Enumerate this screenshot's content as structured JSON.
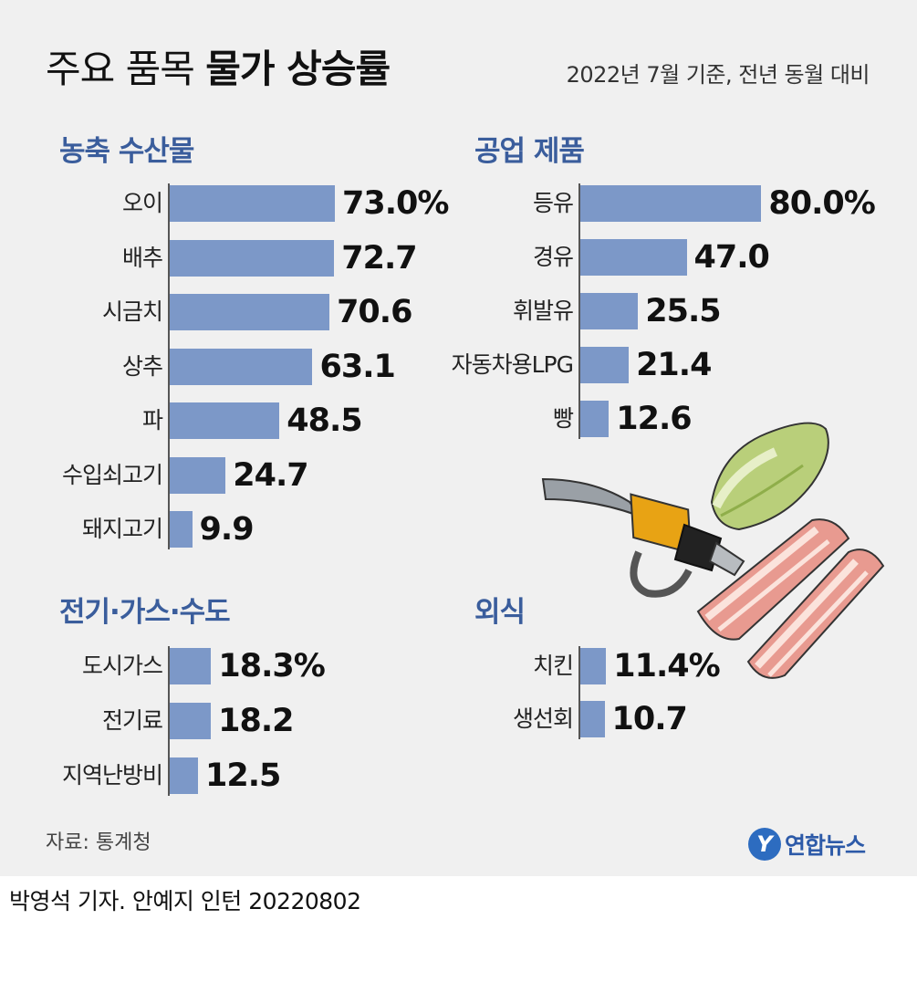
{
  "header": {
    "title_light": "주요 품목",
    "title_bold": "물가 상승률",
    "subtitle": "2022년 7월 기준, 전년 동월 대비"
  },
  "chart_data": [
    {
      "type": "bar",
      "orientation": "horizontal",
      "title": "농축 수산물",
      "categories": [
        "오이",
        "배추",
        "시금치",
        "상추",
        "파",
        "수입쇠고기",
        "돼지고기"
      ],
      "values": [
        73.0,
        72.7,
        70.6,
        63.1,
        48.5,
        24.7,
        9.9
      ],
      "value_labels": [
        "73.0%",
        "72.7",
        "70.6",
        "63.1",
        "48.5",
        "24.7",
        "9.9"
      ],
      "unit": "%",
      "color": "#7c98c8"
    },
    {
      "type": "bar",
      "orientation": "horizontal",
      "title": "공업 제품",
      "categories": [
        "등유",
        "경유",
        "휘발유",
        "자동차용LPG",
        "빵"
      ],
      "values": [
        80.0,
        47.0,
        25.5,
        21.4,
        12.6
      ],
      "value_labels": [
        "80.0%",
        "47.0",
        "25.5",
        "21.4",
        "12.6"
      ],
      "unit": "%",
      "color": "#7c98c8"
    },
    {
      "type": "bar",
      "orientation": "horizontal",
      "title": "전기·가스·수도",
      "categories": [
        "도시가스",
        "전기료",
        "지역난방비"
      ],
      "values": [
        18.3,
        18.2,
        12.5
      ],
      "value_labels": [
        "18.3%",
        "18.2",
        "12.5"
      ],
      "unit": "%",
      "color": "#7c98c8"
    },
    {
      "type": "bar",
      "orientation": "horizontal",
      "title": "외식",
      "categories": [
        "치킨",
        "생선회"
      ],
      "values": [
        11.4,
        10.7
      ],
      "value_labels": [
        "11.4%",
        "10.7"
      ],
      "unit": "%",
      "color": "#7c98c8"
    }
  ],
  "footer": {
    "source": "자료: 통계청",
    "logo_text": "연합뉴스",
    "logo_mark": "Y",
    "credit": "박영석 기자. 안예지 인턴  20220802"
  },
  "colors": {
    "bar": "#7c98c8",
    "section_title": "#3a5d9c",
    "background": "#f0f0f0"
  }
}
